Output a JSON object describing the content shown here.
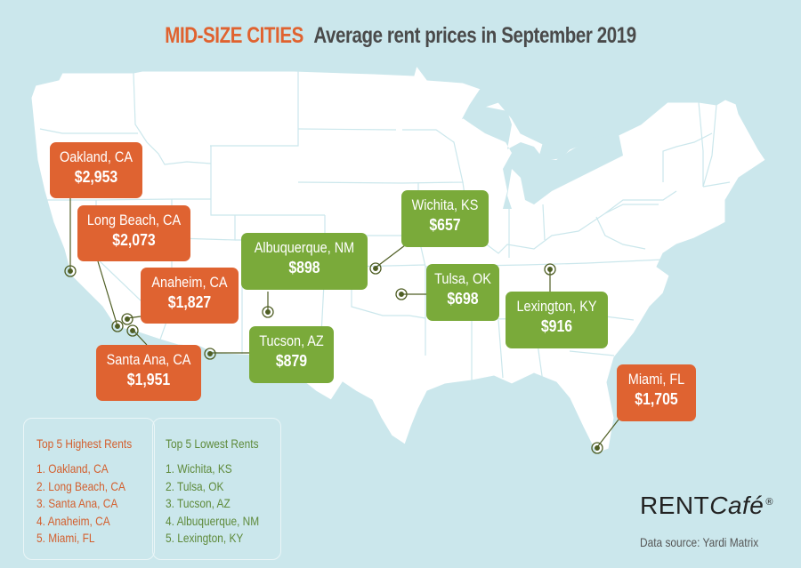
{
  "title": {
    "accent": "MID-SIZE CITIES",
    "main": "Average rent prices in September 2019"
  },
  "colors": {
    "background": "#cbe7ec",
    "land": "#ffffff",
    "high": "#df6331",
    "low": "#7aaa3a",
    "marker": "#4f5e24"
  },
  "cities": [
    {
      "name": "Oakland, CA",
      "price": "$2,953",
      "group": "high"
    },
    {
      "name": "Long Beach, CA",
      "price": "$2,073",
      "group": "high"
    },
    {
      "name": "Anaheim, CA",
      "price": "$1,827",
      "group": "high"
    },
    {
      "name": "Santa Ana, CA",
      "price": "$1,951",
      "group": "high"
    },
    {
      "name": "Miami, FL",
      "price": "$1,705",
      "group": "high"
    },
    {
      "name": "Albuquerque, NM",
      "price": "$898",
      "group": "low"
    },
    {
      "name": "Tucson, AZ",
      "price": "$879",
      "group": "low"
    },
    {
      "name": "Wichita, KS",
      "price": "$657",
      "group": "low"
    },
    {
      "name": "Tulsa, OK",
      "price": "$698",
      "group": "low"
    },
    {
      "name": "Lexington, KY",
      "price": "$916",
      "group": "low"
    }
  ],
  "highest": {
    "heading": "Top 5 Highest Rents",
    "items": [
      "1. Oakland, CA",
      "2. Long Beach, CA",
      "3. Santa Ana, CA",
      "4. Anaheim, CA",
      "5. Miami, FL"
    ]
  },
  "lowest": {
    "heading": "Top 5 Lowest Rents",
    "items": [
      "1. Wichita, KS",
      "2. Tulsa, OK",
      "3. Tucson, AZ",
      "4. Albuquerque, NM",
      "5. Lexington, KY"
    ]
  },
  "logo": {
    "rent": "RENT",
    "cafe": "Café",
    "reg": "®"
  },
  "source": "Data source:  Yardi Matrix"
}
